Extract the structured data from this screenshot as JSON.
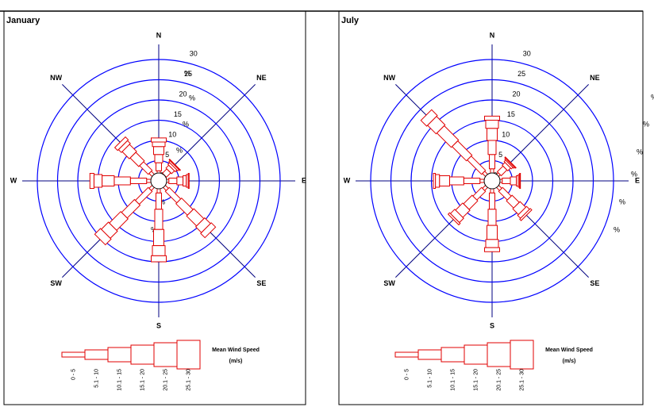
{
  "chart_data": [
    {
      "type": "wind_rose",
      "title": "January",
      "categories": [
        "N",
        "NE",
        "E",
        "SE",
        "S",
        "SW",
        "W",
        "NW"
      ],
      "series": [
        {
          "name": "0 - 5",
          "color": "#e00000",
          "values": [
            2.5,
            2,
            2.5,
            3,
            3,
            3,
            3,
            3
          ]
        },
        {
          "name": "5.1 - 10",
          "color": "#e00000",
          "values": [
            2,
            1.5,
            2,
            4,
            4,
            4.5,
            4,
            3
          ]
        },
        {
          "name": "10.1 - 15",
          "color": "#e00000",
          "values": [
            2,
            1,
            1.5,
            4,
            5,
            4.5,
            4,
            3
          ]
        },
        {
          "name": "15.1 - 20",
          "color": "#e00000",
          "values": [
            2,
            0.6,
            0.8,
            3.5,
            4,
            4,
            3,
            2.5
          ]
        },
        {
          "name": "20.1 - 25",
          "color": "#e00000",
          "values": [
            1.1,
            0.4,
            0.5,
            2,
            2.5,
            2.5,
            2,
            1
          ]
        },
        {
          "name": "25.1 - 30",
          "color": "#e00000",
          "values": [
            1,
            0.2,
            0.2,
            1.5,
            1.5,
            2,
            1,
            1
          ]
        }
      ],
      "rlim": [
        0,
        30
      ],
      "rticks": [
        0,
        5,
        10,
        15,
        20,
        25,
        30
      ],
      "ring_unit": "%",
      "ring_color": "#0000ff",
      "legend_title": "Mean Wind Speed",
      "legend_unit": "(m/s)"
    },
    {
      "type": "wind_rose",
      "title": "July",
      "categories": [
        "N",
        "NE",
        "E",
        "SE",
        "S",
        "SW",
        "W",
        "NW"
      ],
      "series": [
        {
          "name": "0 - 5",
          "color": "#e00000",
          "values": [
            3,
            2.5,
            2.5,
            3,
            3,
            3,
            3,
            3
          ]
        },
        {
          "name": "5.1 - 10",
          "color": "#e00000",
          "values": [
            3.5,
            2,
            2,
            3,
            4,
            3,
            4,
            5
          ]
        },
        {
          "name": "10.1 - 15",
          "color": "#e00000",
          "values": [
            3.5,
            1,
            1.5,
            2.5,
            4,
            3,
            3.5,
            5
          ]
        },
        {
          "name": "15.1 - 20",
          "color": "#e00000",
          "values": [
            3,
            0.5,
            0.5,
            2,
            3.5,
            2.5,
            2.5,
            5
          ]
        },
        {
          "name": "20.1 - 25",
          "color": "#e00000",
          "values": [
            2,
            0.3,
            0.3,
            1,
            2,
            1.5,
            1,
            3
          ]
        },
        {
          "name": "25.1 - 30",
          "color": "#e00000",
          "values": [
            1,
            0.2,
            0.2,
            0.5,
            1,
            0.5,
            0.5,
            2
          ]
        }
      ],
      "rlim": [
        0,
        30
      ],
      "rticks": [
        0,
        5,
        10,
        15,
        20,
        25,
        30
      ],
      "ring_unit": "%",
      "ring_color": "#0000ff",
      "legend_title": "Mean Wind Speed",
      "legend_unit": "(m/s)"
    }
  ]
}
